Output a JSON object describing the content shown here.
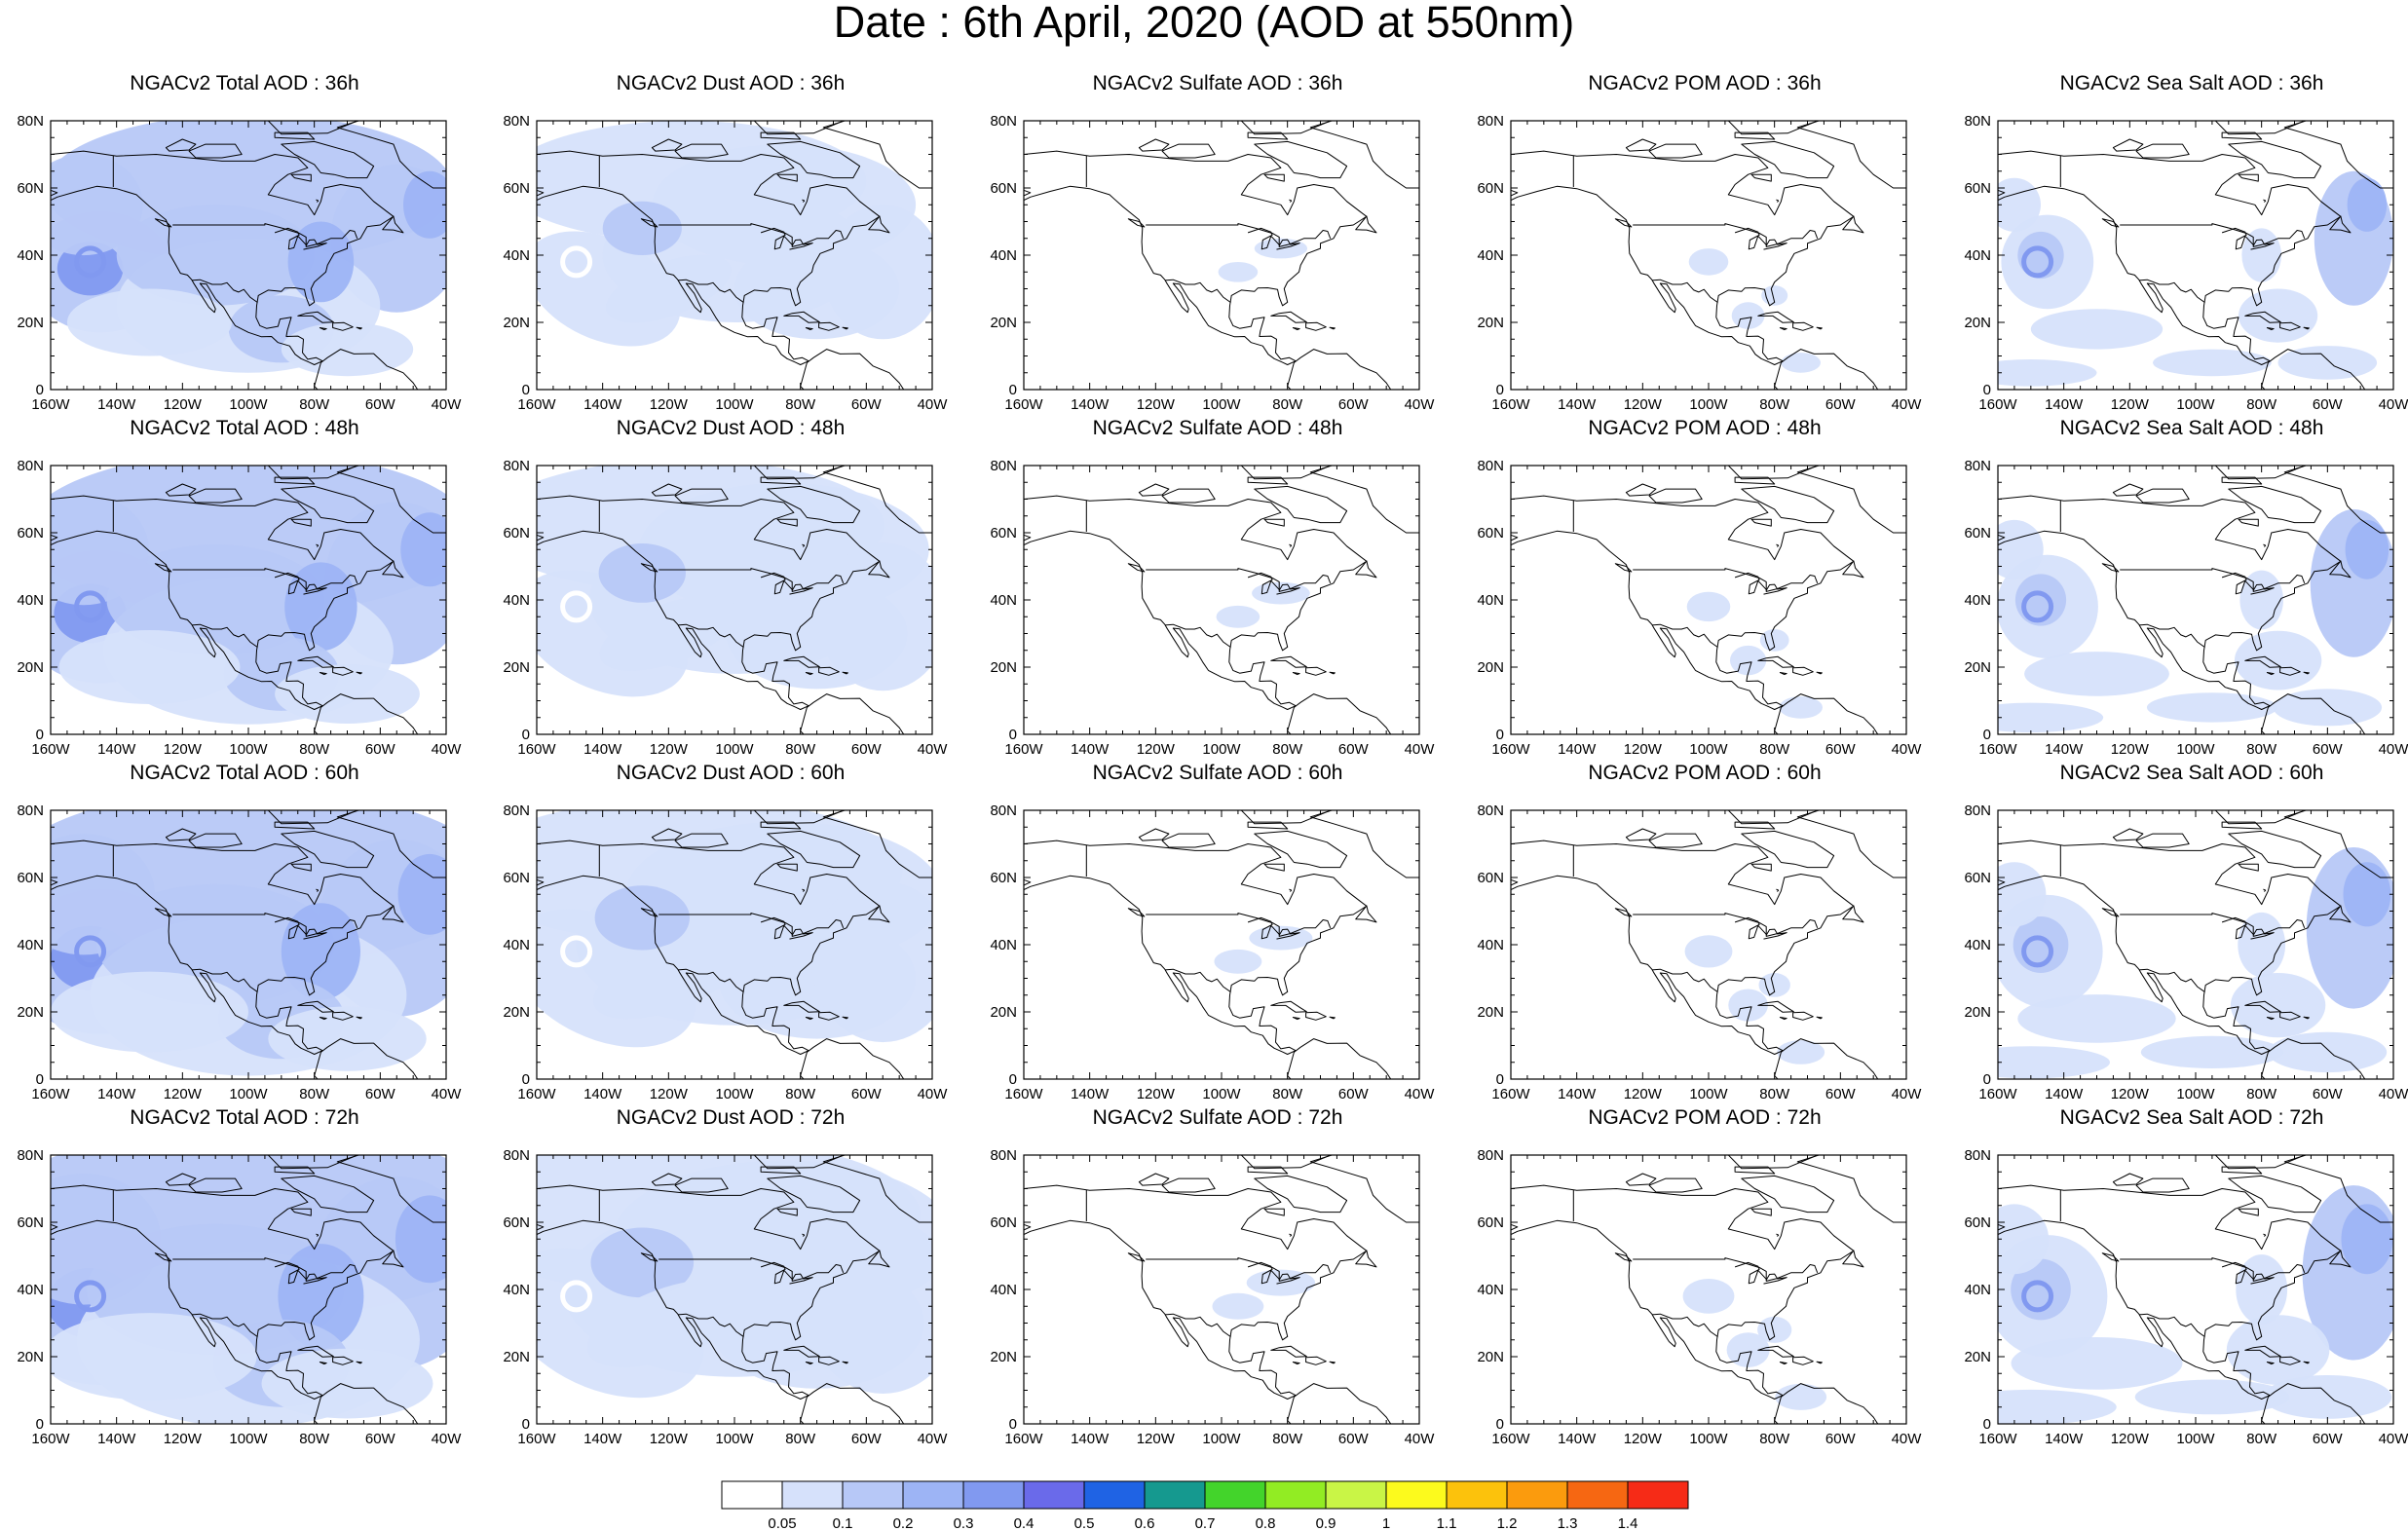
{
  "figure": {
    "title": "Date : 6th April, 2020 (AOD at 550nm)"
  },
  "axes": {
    "lon_labels": [
      "160W",
      "140W",
      "120W",
      "100W",
      "80W",
      "60W",
      "40W"
    ],
    "lat_labels": [
      "80N",
      "60N",
      "40N",
      "20N",
      "0"
    ],
    "lon_range": [
      -160,
      -40
    ],
    "lat_range": [
      0,
      80
    ]
  },
  "panels": [
    {
      "title": "NGACv2 Total AOD : 36h",
      "species": "Total",
      "lead_hour": 36
    },
    {
      "title": "NGACv2 Dust AOD : 36h",
      "species": "Dust",
      "lead_hour": 36
    },
    {
      "title": "NGACv2 Sulfate AOD : 36h",
      "species": "Sulfate",
      "lead_hour": 36
    },
    {
      "title": "NGACv2 POM AOD : 36h",
      "species": "POM",
      "lead_hour": 36
    },
    {
      "title": "NGACv2 Sea Salt AOD : 36h",
      "species": "Sea Salt",
      "lead_hour": 36
    },
    {
      "title": "NGACv2 Total AOD : 48h",
      "species": "Total",
      "lead_hour": 48
    },
    {
      "title": "NGACv2 Dust AOD : 48h",
      "species": "Dust",
      "lead_hour": 48
    },
    {
      "title": "NGACv2 Sulfate AOD : 48h",
      "species": "Sulfate",
      "lead_hour": 48
    },
    {
      "title": "NGACv2 POM AOD : 48h",
      "species": "POM",
      "lead_hour": 48
    },
    {
      "title": "NGACv2 Sea Salt AOD : 48h",
      "species": "Sea Salt",
      "lead_hour": 48
    },
    {
      "title": "NGACv2 Total AOD : 60h",
      "species": "Total",
      "lead_hour": 60
    },
    {
      "title": "NGACv2 Dust AOD : 60h",
      "species": "Dust",
      "lead_hour": 60
    },
    {
      "title": "NGACv2 Sulfate AOD : 60h",
      "species": "Sulfate",
      "lead_hour": 60
    },
    {
      "title": "NGACv2 POM AOD : 60h",
      "species": "POM",
      "lead_hour": 60
    },
    {
      "title": "NGACv2 Sea Salt AOD : 60h",
      "species": "Sea Salt",
      "lead_hour": 60
    },
    {
      "title": "NGACv2 Total AOD : 72h",
      "species": "Total",
      "lead_hour": 72
    },
    {
      "title": "NGACv2 Dust AOD : 72h",
      "species": "Dust",
      "lead_hour": 72
    },
    {
      "title": "NGACv2 Sulfate AOD : 72h",
      "species": "Sulfate",
      "lead_hour": 72
    },
    {
      "title": "NGACv2 POM AOD : 72h",
      "species": "POM",
      "lead_hour": 72
    },
    {
      "title": "NGACv2 Sea Salt  AOD : 72h",
      "species": "Sea Salt",
      "lead_hour": 72
    }
  ],
  "colorbar": {
    "labels": [
      "0.05",
      "0.1",
      "0.2",
      "0.3",
      "0.4",
      "0.5",
      "0.6",
      "0.7",
      "0.8",
      "0.9",
      "1",
      "1.1",
      "1.2",
      "1.3",
      "1.4"
    ],
    "colors": [
      "#ffffff",
      "#d6e1fb",
      "#b7c8f7",
      "#9db4f5",
      "#8199f0",
      "#6a6aea",
      "#1f63e4",
      "#15998f",
      "#43d42b",
      "#92ec23",
      "#c9f546",
      "#fcfa1d",
      "#fcc20c",
      "#fb9b0d",
      "#f66712",
      "#f62b17"
    ]
  },
  "map_colors": {
    "light": "#d6e1fb",
    "medium": "#b7c8f7",
    "strong": "#9db4f5",
    "deep": "#8199f0",
    "coast": "#000000",
    "background": "#ffffff"
  }
}
